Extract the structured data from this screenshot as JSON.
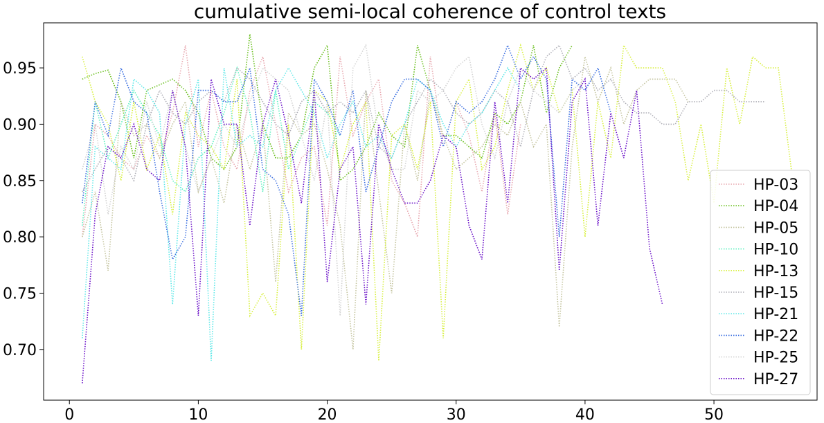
{
  "chart_data": {
    "type": "line",
    "title": "cumulative semi-local coherence of control texts",
    "xlabel": "",
    "ylabel": "",
    "xlim": [
      -2,
      58
    ],
    "ylim": [
      0.655,
      0.99
    ],
    "xticks": [
      0,
      10,
      20,
      30,
      40,
      50
    ],
    "yticks": [
      0.7,
      0.75,
      0.8,
      0.85,
      0.9,
      0.95
    ],
    "ytick_labels": [
      "0.70",
      "0.75",
      "0.80",
      "0.85",
      "0.90",
      "0.95"
    ],
    "legend_position": "lower-right",
    "line_style": "dotted",
    "series": [
      {
        "name": "HP-03",
        "color": "#e8a8b0",
        "values": [
          0.8,
          0.9,
          0.89,
          0.87,
          0.86,
          0.89,
          0.87,
          0.91,
          0.97,
          0.88,
          0.93,
          0.88,
          0.86,
          0.93,
          0.96,
          0.9,
          0.84,
          0.87,
          0.88,
          0.81,
          0.96,
          0.89,
          0.92,
          0.94,
          0.85,
          0.83,
          0.8,
          0.96,
          0.88,
          0.92,
          0.89,
          0.84,
          0.91,
          0.82,
          0.9
        ]
      },
      {
        "name": "HP-04",
        "color": "#6abf1e",
        "values": [
          0.94,
          0.945,
          0.948,
          0.92,
          0.87,
          0.93,
          0.935,
          0.94,
          0.93,
          0.91,
          0.87,
          0.86,
          0.88,
          0.98,
          0.9,
          0.87,
          0.87,
          0.89,
          0.95,
          0.97,
          0.85,
          0.86,
          0.88,
          0.91,
          0.89,
          0.88,
          0.97,
          0.93,
          0.89,
          0.89,
          0.88,
          0.87,
          0.91,
          0.9,
          0.92,
          0.97,
          0.91,
          0.95,
          0.97
        ]
      },
      {
        "name": "HP-05",
        "color": "#c5c5a0",
        "values": [
          0.8,
          0.84,
          0.77,
          0.92,
          0.89,
          0.9,
          0.87,
          0.9,
          0.92,
          0.84,
          0.87,
          0.83,
          0.9,
          0.86,
          0.9,
          0.76,
          0.91,
          0.89,
          0.9,
          0.86,
          0.81,
          0.7,
          0.93,
          0.84,
          0.75,
          0.9,
          0.85,
          0.93,
          0.89,
          0.86,
          0.87,
          0.88,
          0.9,
          0.89,
          0.92,
          0.88,
          0.9,
          0.72,
          0.88,
          0.96,
          0.92,
          0.95,
          0.9,
          0.93,
          0.94,
          0.94,
          0.94,
          0.92
        ]
      },
      {
        "name": "HP-10",
        "color": "#5ff0c0",
        "values": [
          0.81,
          0.92,
          0.87,
          0.9,
          0.93,
          0.91,
          0.89,
          0.85,
          0.84,
          0.87,
          0.88,
          0.91,
          0.95,
          0.91,
          0.84,
          0.93,
          0.86,
          0.89,
          0.92,
          0.91,
          0.89
        ]
      },
      {
        "name": "HP-13",
        "color": "#d8f040",
        "values": [
          0.96,
          0.92,
          0.9,
          0.85,
          0.92,
          0.86,
          0.89,
          0.82,
          0.91,
          0.89,
          0.88,
          0.86,
          0.94,
          0.73,
          0.75,
          0.73,
          0.9,
          0.7,
          0.93,
          0.92,
          0.86,
          0.9,
          0.92,
          0.69,
          0.89,
          0.9,
          0.86,
          0.92,
          0.71,
          0.92,
          0.94,
          0.86,
          0.88,
          0.93,
          0.97,
          0.93,
          0.95,
          0.91,
          0.93,
          0.8,
          0.92,
          0.87,
          0.97,
          0.95,
          0.95,
          0.95,
          0.92,
          0.85,
          0.9,
          0.83,
          0.95,
          0.9,
          0.96,
          0.95,
          0.95,
          0.86
        ]
      },
      {
        "name": "HP-15",
        "color": "#b0b0b8",
        "values": [
          0.84,
          0.86,
          0.88,
          0.87,
          0.85,
          0.9,
          0.93,
          0.91,
          0.9,
          0.92,
          0.93,
          0.92,
          0.95,
          0.94,
          0.92,
          0.9,
          0.89,
          0.92,
          0.93,
          0.91,
          0.92,
          0.91,
          0.93,
          0.88,
          0.87,
          0.9,
          0.92,
          0.94,
          0.93,
          0.91,
          0.9,
          0.91,
          0.93,
          0.92,
          0.88,
          0.93,
          0.96,
          0.97,
          0.94,
          0.95,
          0.93,
          0.94,
          0.92,
          0.91,
          0.91,
          0.9,
          0.9,
          0.92,
          0.92,
          0.93,
          0.93,
          0.92,
          0.92,
          0.92
        ]
      },
      {
        "name": "HP-21",
        "color": "#60e8e8",
        "values": [
          0.71,
          0.88,
          0.87,
          0.86,
          0.94,
          0.93,
          0.91,
          0.74,
          0.9,
          0.94,
          0.69,
          0.95,
          0.88,
          0.89,
          0.88,
          0.93,
          0.95,
          0.93,
          0.91,
          0.87,
          0.9,
          0.92,
          0.88,
          0.89,
          0.87,
          0.9,
          0.94,
          0.93,
          0.9,
          0.88,
          0.9,
          0.91,
          0.93,
          0.95,
          0.93
        ]
      },
      {
        "name": "HP-22",
        "color": "#3a6ee0",
        "values": [
          0.83,
          0.92,
          0.89,
          0.95,
          0.92,
          0.91,
          0.84,
          0.78,
          0.8,
          0.93,
          0.93,
          0.92,
          0.92,
          0.95,
          0.86,
          0.85,
          0.82,
          0.73,
          0.94,
          0.92,
          0.89,
          0.93,
          0.84,
          0.88,
          0.92,
          0.94,
          0.94,
          0.93,
          0.88,
          0.92,
          0.91,
          0.92,
          0.94,
          0.97,
          0.94,
          0.96,
          0.94,
          0.8,
          0.94,
          0.93,
          0.95,
          0.91
        ]
      },
      {
        "name": "HP-25",
        "color": "#d4d4d4",
        "values": [
          0.86,
          0.9,
          0.82,
          0.88,
          0.86,
          0.92,
          0.88,
          0.93,
          0.88,
          0.84,
          0.87,
          0.9,
          0.88,
          0.92,
          0.95,
          0.94,
          0.93,
          0.89,
          0.85,
          0.92,
          0.73,
          0.95,
          0.97,
          0.89,
          0.86,
          0.86,
          0.93,
          0.92,
          0.93,
          0.95,
          0.96,
          0.9,
          0.87,
          0.92,
          0.95,
          0.93,
          0.92,
          0.91,
          0.93,
          0.94
        ]
      },
      {
        "name": "HP-27",
        "color": "#6a10c8",
        "values": [
          0.67,
          0.82,
          0.88,
          0.87,
          0.9,
          0.86,
          0.85,
          0.93,
          0.88,
          0.73,
          0.94,
          0.9,
          0.9,
          0.81,
          0.9,
          0.94,
          0.89,
          0.83,
          0.93,
          0.76,
          0.86,
          0.88,
          0.74,
          0.9,
          0.86,
          0.83,
          0.83,
          0.85,
          0.89,
          0.88,
          0.81,
          0.78,
          0.92,
          0.83,
          0.95,
          0.94,
          0.95,
          0.77,
          0.92,
          0.94,
          0.81,
          0.91,
          0.87,
          0.93,
          0.79,
          0.74
        ]
      }
    ]
  }
}
